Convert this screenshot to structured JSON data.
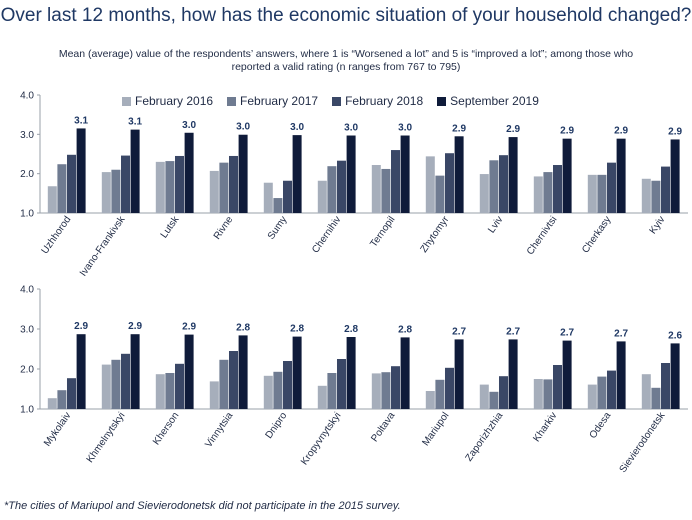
{
  "title": "Over last 12 months, how has the economic situation of your household changed?",
  "subtitle": "Mean (average) value of the respondents’ answers, where 1 is “Worsened a lot” and 5 is “improved a lot”; among those who reported a valid rating (n ranges from 767 to 795)",
  "footnote": "*The cities of Mariupol and Sievierodonetsk did not participate in the 2015 survey.",
  "colors": {
    "February 2016": "#a6aebb",
    "February 2017": "#6f7b91",
    "February 2018": "#3a4766",
    "September 2019": "#0f1b3a"
  },
  "chart_data": [
    {
      "type": "bar",
      "ylim": [
        1.0,
        4.0
      ],
      "yticks": [
        "1.0",
        "2.0",
        "3.0",
        "4.0"
      ],
      "categories": [
        "Uzhhorod",
        "Ivano-Frankivsk",
        "Lutsk",
        "Rivne",
        "Sumy",
        "Chernihiv",
        "Ternopil",
        "Zhytomyr",
        "Lviv",
        "Chernivtsi",
        "Cherkasy",
        "Kyiv"
      ],
      "series": [
        {
          "name": "February 2016",
          "values": [
            1.68,
            2.04,
            2.3,
            2.07,
            1.77,
            1.82,
            2.22,
            2.44,
            1.99,
            1.93,
            1.97,
            1.87
          ]
        },
        {
          "name": "February 2017",
          "values": [
            2.24,
            2.1,
            2.32,
            2.28,
            1.38,
            2.19,
            2.12,
            1.95,
            2.34,
            2.04,
            1.97,
            1.82
          ]
        },
        {
          "name": "February 2018",
          "values": [
            2.48,
            2.46,
            2.45,
            2.45,
            1.82,
            2.33,
            2.6,
            2.52,
            2.47,
            2.22,
            2.28,
            2.18
          ]
        },
        {
          "name": "September 2019",
          "values": [
            3.15,
            3.12,
            3.04,
            2.99,
            2.98,
            2.97,
            2.97,
            2.95,
            2.93,
            2.89,
            2.89,
            2.87
          ]
        }
      ],
      "data_labels": [
        "3.1",
        "3.1",
        "3.0",
        "3.0",
        "3.0",
        "3.0",
        "3.0",
        "2.9",
        "2.9",
        "2.9",
        "2.9",
        "2.9"
      ]
    },
    {
      "type": "bar",
      "ylim": [
        1.0,
        4.0
      ],
      "yticks": [
        "1.0",
        "2.0",
        "3.0",
        "4.0"
      ],
      "categories": [
        "Mykolaiv",
        "Khmelnytskyi",
        "Kherson",
        "Vinnytsia",
        "Dnipro",
        "Kropyvnytskyi",
        "Poltava",
        "Mariupol",
        "Zaporizhzhia",
        "Kharkiv",
        "Odesa",
        "Sievierodonetsk"
      ],
      "series": [
        {
          "name": "February 2016",
          "values": [
            1.27,
            2.11,
            1.87,
            1.69,
            1.83,
            1.58,
            1.89,
            1.45,
            1.61,
            1.75,
            1.61,
            1.87
          ]
        },
        {
          "name": "February 2017",
          "values": [
            1.47,
            2.23,
            1.9,
            2.23,
            1.93,
            1.9,
            1.92,
            1.73,
            1.43,
            1.74,
            1.81,
            1.53
          ]
        },
        {
          "name": "February 2018",
          "values": [
            1.77,
            2.38,
            2.13,
            2.45,
            2.2,
            2.25,
            2.07,
            2.03,
            1.82,
            2.1,
            1.96,
            2.15
          ]
        },
        {
          "name": "September 2019",
          "values": [
            2.87,
            2.87,
            2.86,
            2.84,
            2.81,
            2.8,
            2.79,
            2.74,
            2.74,
            2.71,
            2.69,
            2.64
          ]
        }
      ],
      "data_labels": [
        "2.9",
        "2.9",
        "2.9",
        "2.8",
        "2.8",
        "2.8",
        "2.8",
        "2.7",
        "2.7",
        "2.7",
        "2.7",
        "2.6"
      ]
    }
  ]
}
